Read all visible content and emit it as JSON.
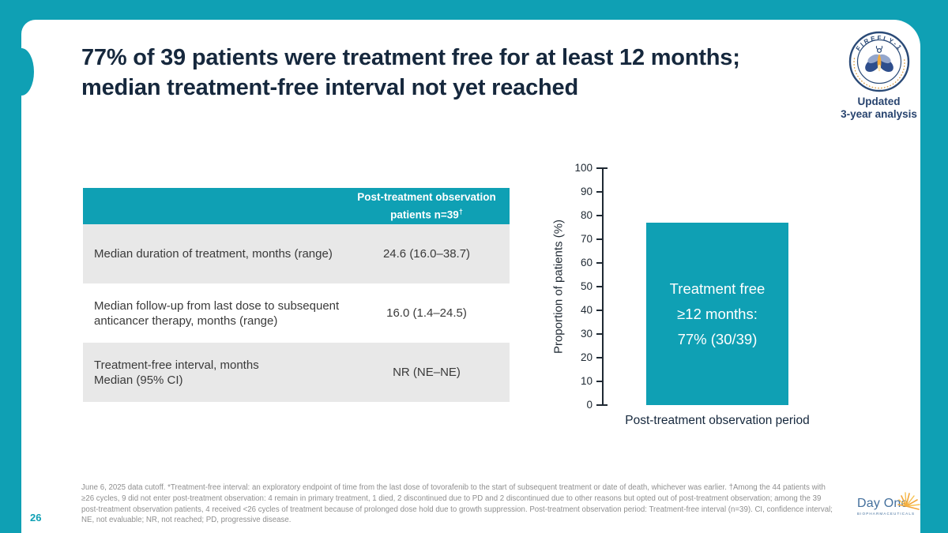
{
  "page": {
    "number": "26"
  },
  "title": {
    "line1": "77% of 39 patients were treatment free for at least 12 months;",
    "line2": "median treatment-free interval not yet reached"
  },
  "badge": {
    "arc_text": "FIREFLY-1",
    "line1": "Updated",
    "line2": "3-year analysis"
  },
  "table": {
    "header": {
      "line1": "Post-treatment observation",
      "line2": "patients n=39",
      "dagger": "†"
    },
    "rows": [
      {
        "label_line1": "Median duration of treatment, months (range)",
        "label_line2": "",
        "value": "24.6 (16.0–38.7)"
      },
      {
        "label_line1": "Median follow-up from last dose to subsequent",
        "label_line2": "anticancer therapy, months (range)",
        "value": "16.0 (1.4–24.5)"
      },
      {
        "label_line1": "Treatment-free interval, months",
        "label_line2": "Median (95% CI)",
        "value": "NR (NE–NE)"
      }
    ]
  },
  "chart_data": {
    "type": "bar",
    "categories": [
      "Post-treatment observation period"
    ],
    "values": [
      77
    ],
    "bar_label_lines": [
      "Treatment free",
      "≥12 months:",
      "77% (30/39)"
    ],
    "title": "",
    "xlabel": "Post-treatment observation period",
    "ylabel": "Proportion of patients (%)",
    "ylim": [
      0,
      100
    ],
    "yticks": [
      0,
      10,
      20,
      30,
      40,
      50,
      60,
      70,
      80,
      90,
      100
    ],
    "grid": false,
    "bar_color": "#0FA0B4"
  },
  "footnote": "June 6, 2025 data cutoff. *Treatment-free interval: an exploratory endpoint of time from the last dose of tovorafenib to the start of subsequent treatment or date of death, whichever was earlier. †Among the 44 patients with ≥26 cycles, 9 did not enter post-treatment observation: 4 remain in primary treatment, 1 died, 2 discontinued due to PD and 2 discontinued due to other reasons but opted out of post-treatment observation; among the 39 post-treatment observation patients, 4 received <26 cycles of treatment because of prolonged dose hold due to growth suppression. Post-treatment observation period: Treatment-free interval (n=39). CI, confidence interval; NE, not evaluable; NR, not reached; PD, progressive disease.",
  "logo": {
    "name": "Day One",
    "sub": "BIOPHARMACEUTICALS"
  },
  "colors": {
    "accent_teal": "#0FA0B4",
    "title_navy": "#16283D",
    "badge_navy": "#27436E",
    "row_gray": "#E8E8E8",
    "footnote_gray": "#8F8F8F",
    "logo_blue": "#44709D"
  }
}
